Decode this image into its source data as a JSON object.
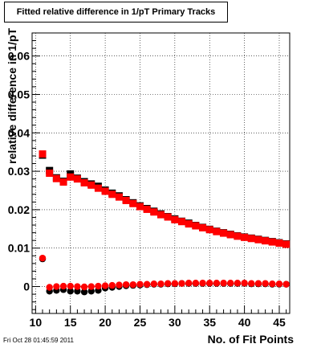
{
  "timestamp": "Fri Oct 28 01:45:59 2011",
  "chart_data": {
    "type": "scatter",
    "title": "Fitted relative difference in 1/pT Primary Tracks",
    "xlabel": "No. of Fit Points",
    "ylabel": "relative difference in 1/pT",
    "xlim": [
      9.5,
      46.5
    ],
    "ylim": [
      -0.007,
      0.066
    ],
    "x_ticks": [
      10,
      15,
      20,
      25,
      30,
      35,
      40,
      45
    ],
    "x_tick_labels": [
      "10",
      "15",
      "20",
      "25",
      "30",
      "35",
      "40",
      "45"
    ],
    "y_ticks": [
      0,
      0.01,
      0.02,
      0.03,
      0.04,
      0.05,
      0.06
    ],
    "y_tick_labels": [
      "0",
      "0.01",
      "0.02",
      "0.03",
      "0.04",
      "0.05",
      "0.06"
    ],
    "grid": true,
    "series": [
      {
        "marker": "square",
        "color": "#000000",
        "x": [
          11,
          12,
          13,
          14,
          15,
          16,
          17,
          18,
          19,
          20,
          21,
          22,
          23,
          24,
          25,
          26,
          27,
          28,
          29,
          30,
          31,
          32,
          33,
          34,
          35,
          36,
          37,
          38,
          39,
          40,
          41,
          42,
          43,
          44,
          45,
          46
        ],
        "y": [
          0.0342,
          0.0302,
          0.0283,
          0.0274,
          0.0293,
          0.0282,
          0.0273,
          0.0267,
          0.0261,
          0.0251,
          0.0243,
          0.0236,
          0.0226,
          0.0218,
          0.021,
          0.0203,
          0.0196,
          0.0189,
          0.0182,
          0.0176,
          0.017,
          0.0165,
          0.0159,
          0.0154,
          0.0149,
          0.0144,
          0.014,
          0.0136,
          0.0132,
          0.0129,
          0.0126,
          0.0123,
          0.012,
          0.0117,
          0.0114,
          0.0111
        ]
      },
      {
        "marker": "square",
        "color": "#ff0000",
        "x": [
          11,
          12,
          13,
          14,
          15,
          16,
          17,
          18,
          19,
          20,
          21,
          22,
          23,
          24,
          25,
          26,
          27,
          28,
          29,
          30,
          31,
          32,
          33,
          34,
          35,
          36,
          37,
          38,
          39,
          40,
          41,
          42,
          43,
          44,
          45,
          46
        ],
        "y": [
          0.0345,
          0.0295,
          0.0281,
          0.0272,
          0.0285,
          0.028,
          0.027,
          0.0264,
          0.0256,
          0.0248,
          0.024,
          0.0233,
          0.0224,
          0.0216,
          0.0208,
          0.0201,
          0.0194,
          0.0187,
          0.0181,
          0.0174,
          0.0169,
          0.0163,
          0.0158,
          0.0153,
          0.0148,
          0.0143,
          0.0139,
          0.0135,
          0.0131,
          0.0128,
          0.0125,
          0.0122,
          0.0119,
          0.0116,
          0.0113,
          0.011
        ]
      },
      {
        "marker": "circle",
        "color": "#000000",
        "x": [
          11,
          12,
          13,
          14,
          15,
          16,
          17,
          18,
          19,
          20,
          21,
          22,
          23,
          24,
          25,
          26,
          27,
          28,
          29,
          30,
          31,
          32,
          33,
          34,
          35,
          36,
          37,
          38,
          39,
          40,
          41,
          42,
          43,
          44,
          45,
          46
        ],
        "y": [
          0.0072,
          -0.0012,
          -0.001,
          -0.0008,
          -0.0012,
          -0.0012,
          -0.0014,
          -0.0012,
          -0.001,
          -0.0004,
          -0.0002,
          0.0,
          0.0002,
          0.0003,
          0.0004,
          0.0005,
          0.0006,
          0.0006,
          0.0007,
          0.0007,
          0.0008,
          0.0008,
          0.0008,
          0.0008,
          0.0008,
          0.0008,
          0.0008,
          0.0008,
          0.0008,
          0.0008,
          0.0007,
          0.0007,
          0.0007,
          0.0006,
          0.0006,
          0.0006
        ]
      },
      {
        "marker": "circle",
        "color": "#ff0000",
        "x": [
          11,
          12,
          13,
          14,
          15,
          16,
          17,
          18,
          19,
          20,
          21,
          22,
          23,
          24,
          25,
          26,
          27,
          28,
          29,
          30,
          31,
          32,
          33,
          34,
          35,
          36,
          37,
          38,
          39,
          40,
          41,
          42,
          43,
          44,
          45,
          46
        ],
        "y": [
          0.0074,
          -0.0002,
          0.0,
          0.0001,
          0.0001,
          0.0,
          -0.0001,
          0.0,
          0.0001,
          0.0002,
          0.0003,
          0.0004,
          0.0005,
          0.0005,
          0.0006,
          0.0006,
          0.0007,
          0.0007,
          0.0008,
          0.0008,
          0.0008,
          0.0009,
          0.0009,
          0.0009,
          0.0009,
          0.0009,
          0.0009,
          0.0009,
          0.0009,
          0.0009,
          0.0008,
          0.0008,
          0.0008,
          0.0007,
          0.0007,
          0.0006
        ]
      }
    ]
  }
}
